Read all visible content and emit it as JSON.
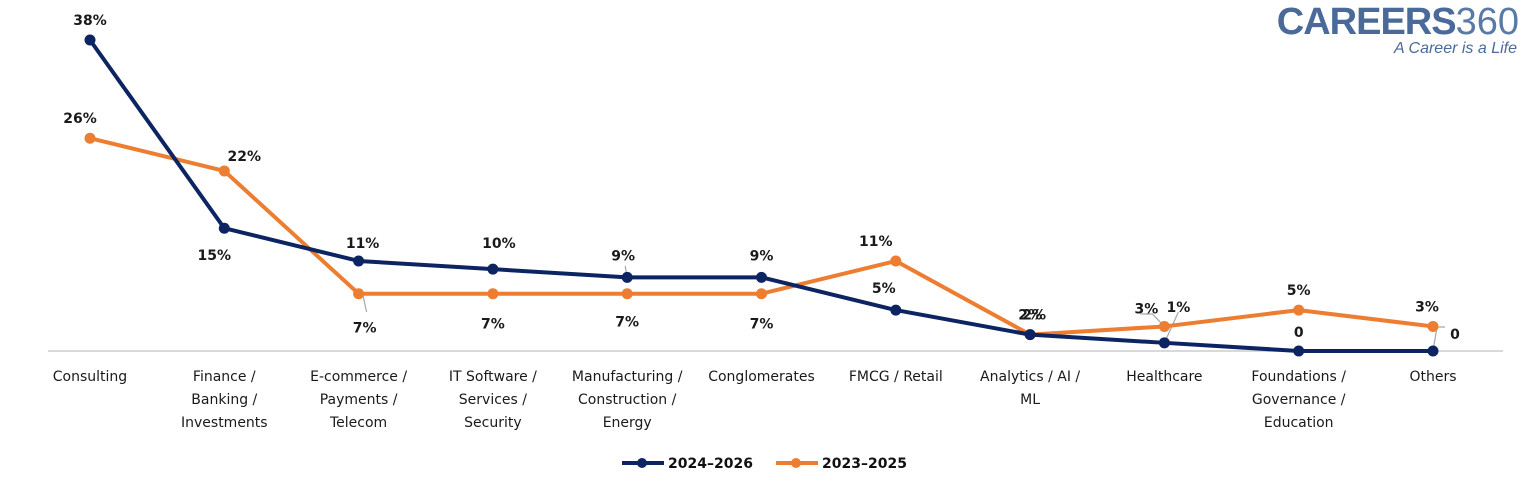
{
  "logo": {
    "brand": "CAREERS",
    "brand_number": "360",
    "tagline": "A Career is a Life"
  },
  "chart_data": {
    "type": "line",
    "title": "",
    "xlabel": "",
    "ylabel": "",
    "ylim": [
      0,
      38
    ],
    "grid": false,
    "legend_position": "bottom",
    "categories": [
      [
        "Consulting"
      ],
      [
        "Finance /",
        "Banking /",
        "Investments"
      ],
      [
        "E-commerce /",
        "Payments /",
        "Telecom"
      ],
      [
        "IT Software /",
        "Services /",
        "Security"
      ],
      [
        "Manufacturing /",
        "Construction /",
        "Energy"
      ],
      [
        "Conglomerates"
      ],
      [
        "FMCG / Retail"
      ],
      [
        "Analytics / AI /",
        "ML"
      ],
      [
        "Healthcare"
      ],
      [
        "Foundations /",
        "Governance /",
        "Education"
      ],
      [
        "Others"
      ]
    ],
    "series": [
      {
        "name": "2024–2026",
        "color": "#0c2461",
        "values": [
          38,
          15,
          11,
          10,
          9,
          9,
          5,
          2,
          1,
          0,
          0
        ],
        "labels": [
          "38%",
          "15%",
          "11%",
          "10%",
          "9%",
          "9%",
          "5%",
          "2%",
          "1%",
          "0",
          "0"
        ]
      },
      {
        "name": "2023–2025",
        "color": "#ed7d31",
        "values": [
          26,
          22,
          7,
          7,
          7,
          7,
          11,
          2,
          3,
          5,
          3
        ],
        "labels": [
          "26%",
          "22%",
          "7%",
          "7%",
          "7%",
          "7%",
          "11%",
          "2%",
          "3%",
          "5%",
          "3%"
        ]
      }
    ]
  }
}
